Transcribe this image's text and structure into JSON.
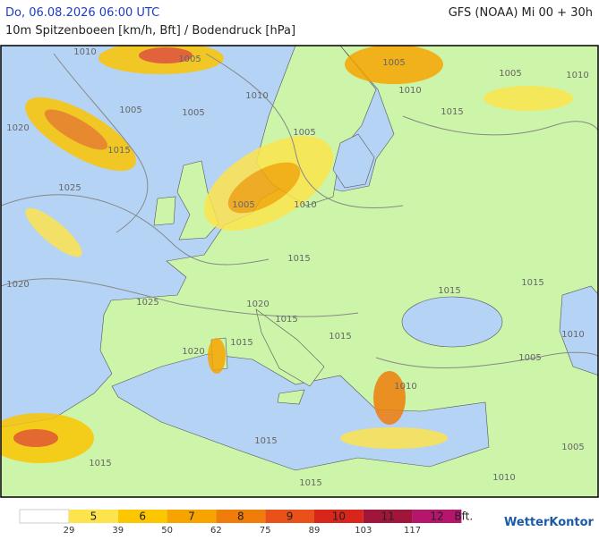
{
  "header": {
    "datetime": "Do, 06.08.2026 06:00 UTC",
    "model": "GFS (NOAA) Mi 00 + 30h",
    "subtitle": "10m Spitzenboeen [km/h, Bft] / Bodendruck [hPa]"
  },
  "isobar_labels": [
    1010,
    1005,
    1005,
    1005,
    1010,
    1010,
    1010,
    1005,
    1005,
    1015,
    1020,
    1015,
    1005,
    1025,
    1005,
    1010,
    1015,
    1020,
    1015,
    1015,
    1025,
    1020,
    1015,
    1015,
    1015,
    1010,
    1020,
    1005,
    1010,
    1015,
    1005,
    1015,
    1015,
    1010
  ],
  "legend": {
    "classes": [
      {
        "bft": 5,
        "color": "#fde44c"
      },
      {
        "bft": 6,
        "color": "#fcc600"
      },
      {
        "bft": 7,
        "color": "#f7a400"
      },
      {
        "bft": 8,
        "color": "#f07d0a"
      },
      {
        "bft": 9,
        "color": "#e9501a"
      },
      {
        "bft": 10,
        "color": "#d8261c"
      },
      {
        "bft": 11,
        "color": "#a0163a"
      },
      {
        "bft": 12,
        "color": "#b5156b"
      }
    ],
    "unit": "Bft.",
    "thresholds": [
      29,
      39,
      50,
      62,
      75,
      89,
      103,
      117
    ]
  },
  "logo": "WetterKontor"
}
